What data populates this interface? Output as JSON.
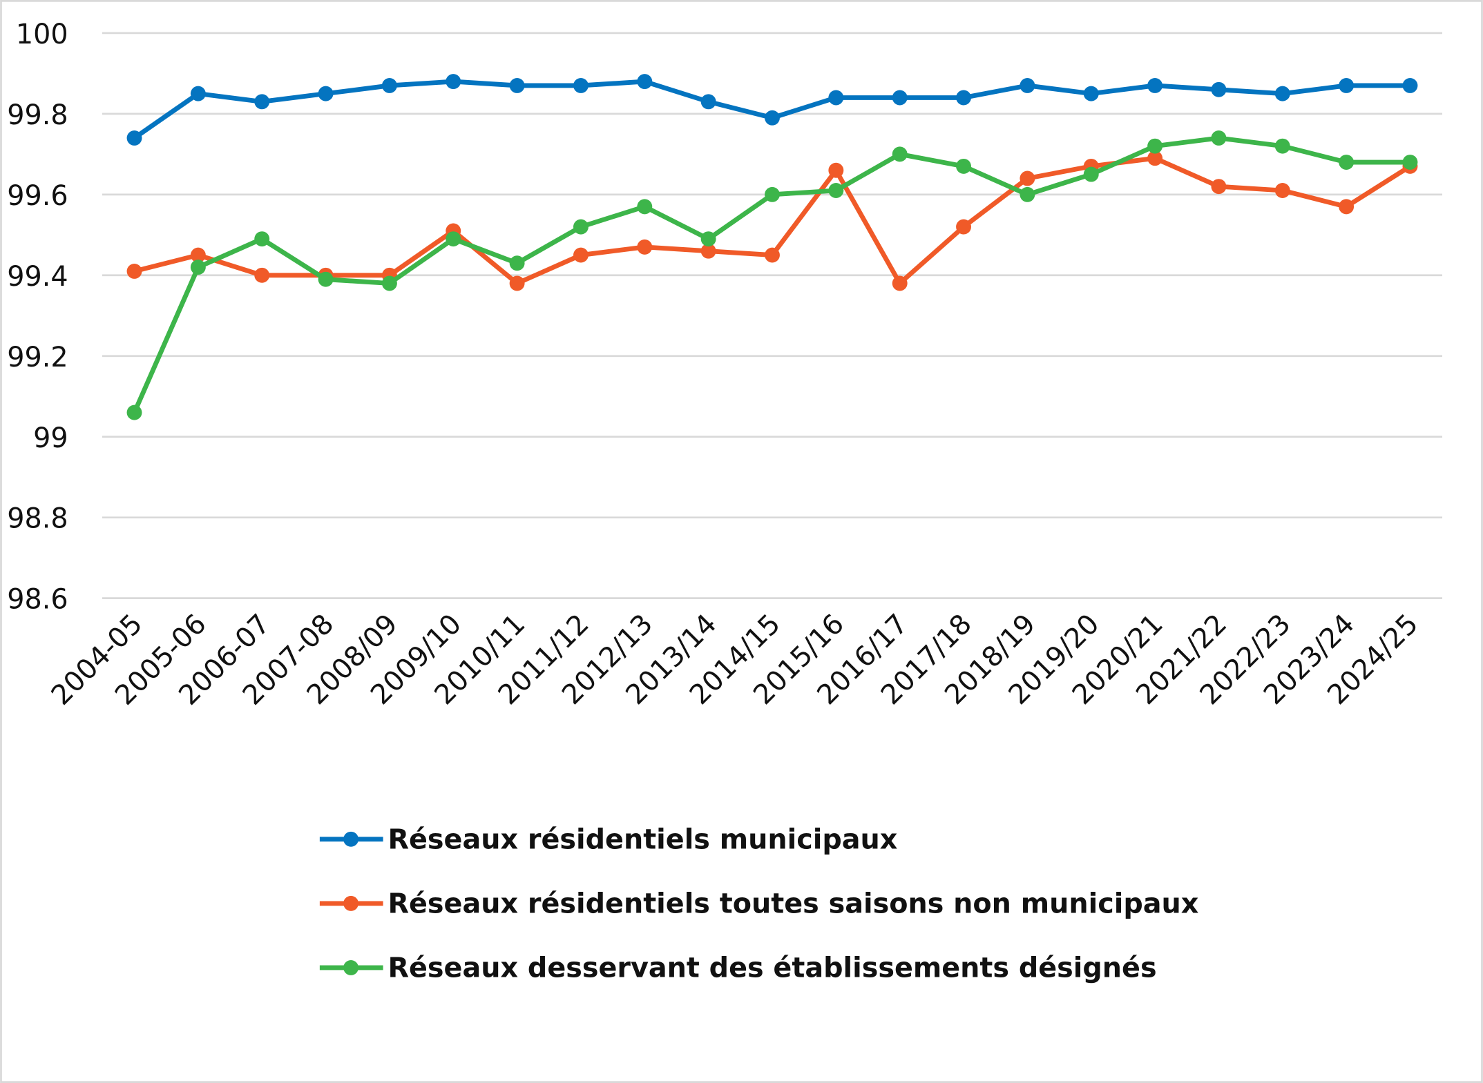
{
  "chart_data": {
    "type": "line",
    "title": "",
    "xlabel": "",
    "ylabel": "",
    "ylim": [
      98.6,
      100
    ],
    "yticks": [
      "98.6",
      "98.8",
      "99",
      "99.2",
      "99.4",
      "99.6",
      "99.8",
      "100"
    ],
    "grid": true,
    "legend_placement": "bottom",
    "categories": [
      "2004-05",
      "2005-06",
      "2006-07",
      "2007-08",
      "2008/09",
      "2009/10",
      "2010/11",
      "2011/12",
      "2012/13",
      "2013/14",
      "2014/15",
      "2015/16",
      "2016/17",
      "2017/18",
      "2018/19",
      "2019/20",
      "2020/21",
      "2021/22",
      "2022/23",
      "2023/24",
      "2024/25"
    ],
    "series": [
      {
        "name": "Réseaux résidentiels municipaux",
        "color": "#0474c0",
        "values": [
          99.74,
          99.85,
          99.83,
          99.85,
          99.87,
          99.88,
          99.87,
          99.87,
          99.88,
          99.83,
          99.79,
          99.84,
          99.84,
          99.84,
          99.87,
          99.85,
          99.87,
          99.86,
          99.85,
          99.87,
          99.87
        ]
      },
      {
        "name": "Réseaux résidentiels toutes saisons non municipaux",
        "color": "#f05a28",
        "values": [
          99.41,
          99.45,
          99.4,
          99.4,
          99.4,
          99.51,
          99.38,
          99.45,
          99.47,
          99.46,
          99.45,
          99.66,
          99.38,
          99.52,
          99.64,
          99.67,
          99.69,
          99.62,
          99.61,
          99.57,
          99.67
        ]
      },
      {
        "name": " Réseaux desservant des établissements désignés",
        "color": "#3db54a",
        "values": [
          99.06,
          99.42,
          99.49,
          99.39,
          99.38,
          99.49,
          99.43,
          99.52,
          99.57,
          99.49,
          99.6,
          99.61,
          99.7,
          99.67,
          99.6,
          99.65,
          99.72,
          99.74,
          99.72,
          99.68,
          99.68
        ]
      }
    ]
  }
}
